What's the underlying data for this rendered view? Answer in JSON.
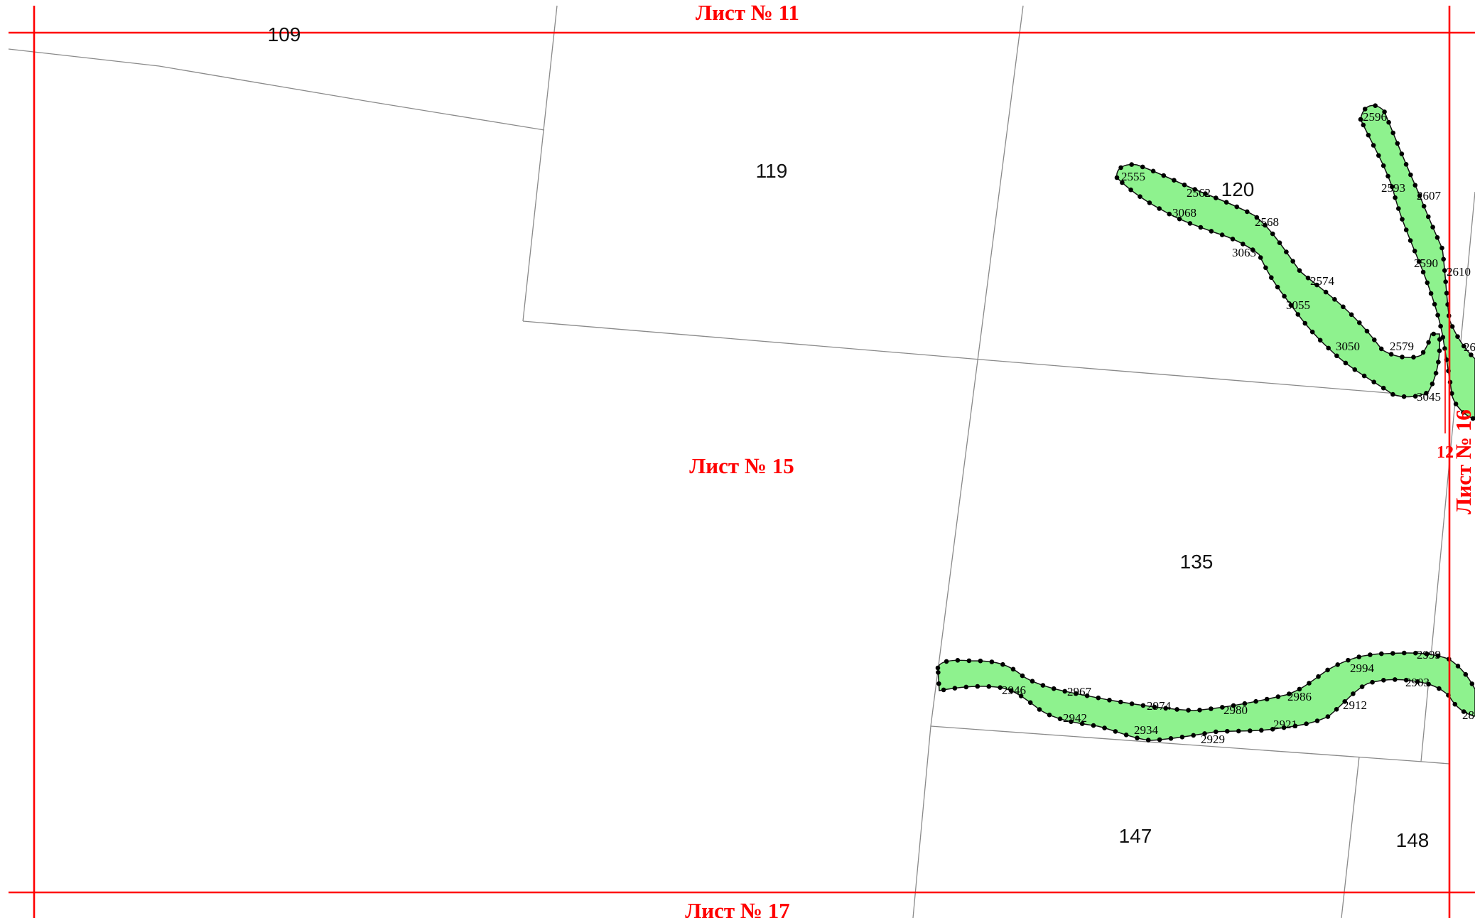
{
  "map": {
    "colors": {
      "sheet_frame": "#ff0000",
      "parcel_line": "#8a8a8a",
      "strip_fill": "#8ef28e",
      "vertex": "#000000"
    },
    "sheet_labels": {
      "top": "Лист № 11",
      "center": "Лист № 15",
      "bottom": "Лист № 17",
      "right": "Лист № 16"
    },
    "segment_number": "12",
    "parcel_numbers": {
      "p109": "109",
      "p119": "119",
      "p120": "120",
      "p135": "135",
      "p147": "147",
      "p148": "148"
    },
    "point_labels": {
      "pt2596": "2596",
      "pt2593": "2593",
      "pt2607": "2607",
      "pt2590": "2590",
      "pt2610": "2610",
      "pt2555": "2555",
      "pt2562": "2562",
      "pt3068": "3068",
      "pt2568": "2568",
      "pt3063": "3063",
      "pt2574": "2574",
      "pt3055": "3055",
      "pt3050": "3050",
      "pt2579": "2579",
      "pt3045": "3045",
      "pt2999": "2999",
      "pt2994": "2994",
      "pt2903": "2903",
      "pt2986": "2986",
      "pt2912": "2912",
      "pt2946": "2946",
      "pt2967": "2967",
      "pt2974": "2974",
      "pt2980": "2980",
      "pt2942": "2942",
      "pt2934": "2934",
      "pt2929": "2929",
      "pt2921": "2921",
      "pt26x": "26",
      "pt28x": "28"
    }
  }
}
